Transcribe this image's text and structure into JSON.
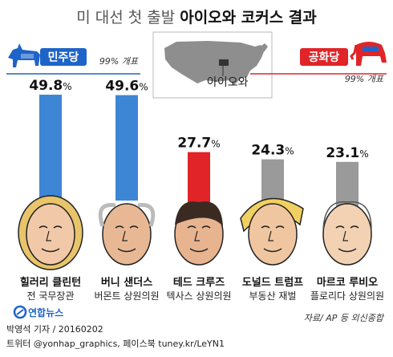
{
  "title": {
    "part1": "미 대선 첫 출발",
    "part2": "아이오와 코커스 결과"
  },
  "map_label": "아이오와",
  "parties": {
    "dem": {
      "name": "민주당",
      "count": "99% 개표",
      "color": "#1e64c8"
    },
    "rep": {
      "name": "공화당",
      "count": "99% 개표",
      "color": "#e02428"
    }
  },
  "chart_data": {
    "type": "bar",
    "unit": "%",
    "categories": [
      "힐러리 클린턴",
      "버니 샌더스",
      "테드 크루즈",
      "도널드 트럼프",
      "마르코 루비오"
    ],
    "subtitles": [
      "전 국무장관",
      "버몬트 상원의원",
      "텍사스 상원의원",
      "부동산 재벌",
      "플로리다 상원의원"
    ],
    "values": [
      49.8,
      49.6,
      27.7,
      24.3,
      23.1
    ],
    "value_labels": [
      "49.8",
      "49.6",
      "27.7",
      "24.3",
      "23.1"
    ],
    "party": [
      "dem",
      "dem",
      "rep",
      "rep",
      "rep"
    ],
    "colors": [
      "#3d86d6",
      "#3d86d6",
      "#e02428",
      "#9a9a9a",
      "#9a9a9a"
    ]
  },
  "source": "자료/ AP 등 외신종합",
  "logo_text": "연합뉴스",
  "byline": "박영석 기자 / 20160202",
  "social": "트위터 @yonhap_graphics, 페이스북 tuney.kr/LeYN1"
}
